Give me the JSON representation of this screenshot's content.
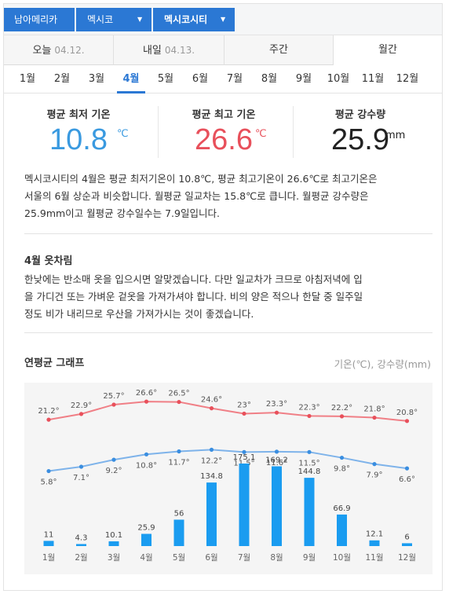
{
  "breadcrumb": {
    "items": [
      {
        "label": "남아메리카"
      },
      {
        "label": "멕시코"
      },
      {
        "label": "멕시코시티"
      }
    ]
  },
  "day_tabs": [
    {
      "label": "오늘",
      "date": "04.12."
    },
    {
      "label": "내일",
      "date": "04.13."
    },
    {
      "label": "주간",
      "date": ""
    },
    {
      "label": "월간",
      "date": "",
      "selected": true
    }
  ],
  "months": [
    "1월",
    "2월",
    "3월",
    "4월",
    "5월",
    "6월",
    "7월",
    "8월",
    "9월",
    "10월",
    "11월",
    "12월"
  ],
  "selected_month": "4월",
  "stats": {
    "min": {
      "label": "평균 최저 기온",
      "value": "10.8",
      "unit": "℃",
      "color": "#3a9ae0"
    },
    "max": {
      "label": "평균 최고 기온",
      "value": "26.6",
      "unit": "℃",
      "color": "#e8505b"
    },
    "rain": {
      "label": "평균 강수량",
      "value": "25.9",
      "unit": "mm",
      "color": "#222222"
    }
  },
  "summary": [
    "멕시코시티의 4월은 평균 최저기온이 10.8℃, 평균 최고기온이 26.6℃로 최고기온은",
    "서울의 6월 상순과 비슷합니다. 월평균 일교차는 15.8℃로 큽니다. 월평균 강수량은",
    "25.9mm이고 월평균 강수일수는 7.9일입니다."
  ],
  "clothing": {
    "title": "4월 옷차림",
    "text": [
      "한낮에는 반소매 옷을 입으시면 알맞겠습니다. 다만 일교차가 크므로 아침저녁에 입",
      "을 가디건 또는 가벼운 겉옷을 가져가셔야 합니다. 비의 양은 적으나 한달 중 일주일",
      "정도 비가 내리므로 우산을 가져가시는 것이 좋겠습니다."
    ]
  },
  "graph": {
    "title": "연평균 그래프",
    "legend_note": "기온(℃), 강수량(mm)"
  },
  "chart_data": {
    "type": "line",
    "categories": [
      "1월",
      "2월",
      "3월",
      "4월",
      "5월",
      "6월",
      "7월",
      "8월",
      "9월",
      "10월",
      "11월",
      "12월"
    ],
    "series": [
      {
        "values": [
          21.2,
          22.9,
          25.7,
          26.6,
          26.5,
          24.6,
          23,
          23.3,
          22.3,
          22.2,
          21.8,
          20.8
        ],
        "labels": [
          "21.2°",
          "22.9°",
          "25.7°",
          "26.6°",
          "26.5°",
          "24.6°",
          "23°",
          "23.3°",
          "22.3°",
          "22.2°",
          "21.8°",
          "20.8°"
        ],
        "color": "#f07f86"
      },
      {
        "values": [
          5.8,
          7.1,
          9.2,
          10.8,
          11.7,
          12.2,
          11.5,
          11.6,
          11.5,
          9.8,
          7.9,
          6.6
        ],
        "labels": [
          "5.8°",
          "7.1°",
          "9.2°",
          "10.8°",
          "11.7°",
          "12.2°",
          "11.5°",
          "11.6°",
          "11.5°",
          "9.8°",
          "7.9°",
          "6.6°"
        ],
        "color": "#7eb3ea"
      },
      {
        "type": "bar",
        "values": [
          11,
          4.3,
          10.1,
          25.9,
          56,
          134.8,
          175.1,
          169.2,
          144.8,
          66.9,
          12.1,
          6
        ],
        "labels": [
          "11",
          "4.3",
          "10.1",
          "25.9",
          "56",
          "134.8",
          "175.1",
          "169.2",
          "144.8",
          "66.9",
          "12.1",
          "6"
        ],
        "color": "#1a9cf0"
      }
    ]
  }
}
